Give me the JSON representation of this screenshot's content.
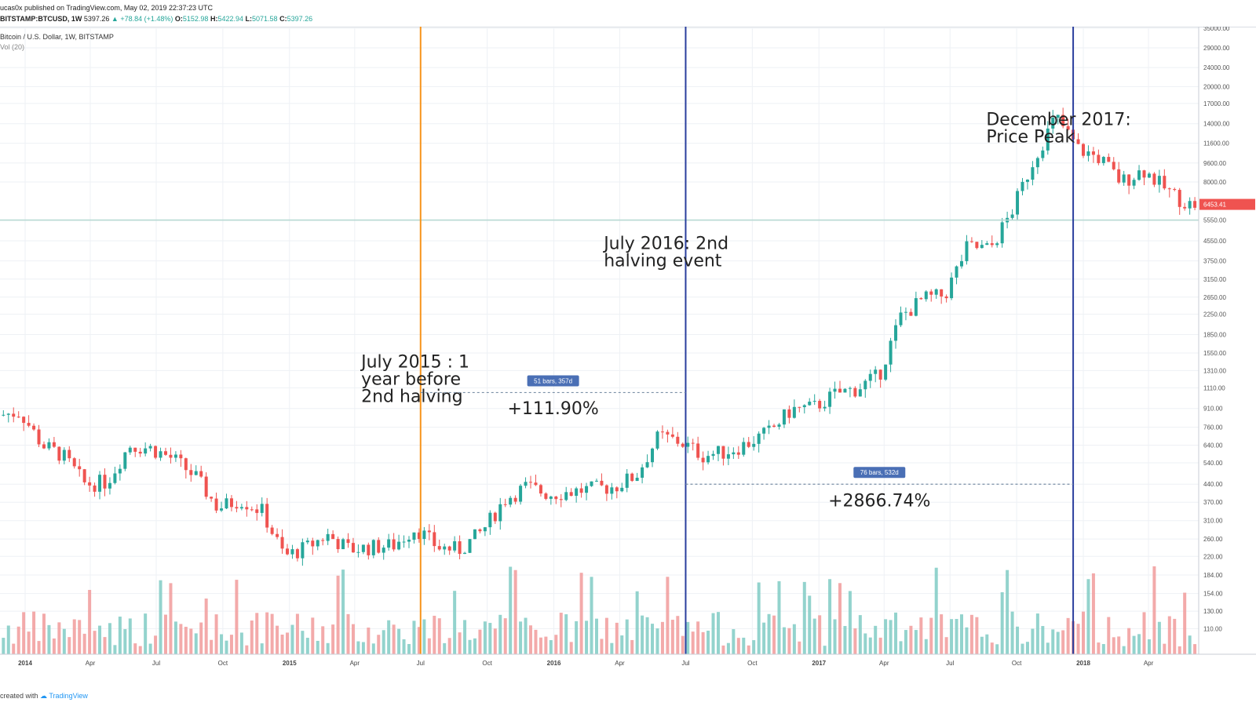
{
  "header": {
    "publish_text": "ucas0x published on TradingView.com, May 02, 2019 22:37:23 UTC",
    "symbol": "BITSTAMP:BTCUSD, 1W",
    "last": "5397.26",
    "change": "▲ +78.84 (+1.48%)",
    "o_label": "O:",
    "o": "5152.98",
    "h_label": "H:",
    "h": "5422.94",
    "l_label": "L:",
    "l": "5071.58",
    "c_label": "C:",
    "c": "5397.26"
  },
  "legend": {
    "title": "Bitcoin / U.S. Dollar, 1W, BITSTAMP",
    "vol": "Vol (20)"
  },
  "footer": {
    "created_with": "created with",
    "brand": "TradingView"
  },
  "colors": {
    "up": "#26a69a",
    "down": "#ef5350",
    "vol_up": "#80cbc4",
    "vol_down": "#f19b9b",
    "orange_line": "#f7931a",
    "blue_line": "#2a3f9e",
    "measure": "#7a8fa6",
    "measure_label": "#4a6fb5",
    "price_tag": "#ef5350"
  },
  "chart_data": {
    "type": "candlestick",
    "scale": "log",
    "ylim": [
      100,
      35000
    ],
    "y_ticks": [
      "35000.00",
      "29000.00",
      "24000.00",
      "20000.00",
      "17000.00",
      "14000.00",
      "11600.00",
      "9600.00",
      "8000.00",
      "6453.41",
      "5550.00",
      "4550.00",
      "3750.00",
      "3150.00",
      "2650.00",
      "2250.00",
      "1850.00",
      "1550.00",
      "1310.00",
      "1110.00",
      "910.00",
      "760.00",
      "640.00",
      "540.00",
      "440.00",
      "370.00",
      "310.00",
      "260.00",
      "220.00",
      "184.00",
      "154.00",
      "130.00",
      "110.00"
    ],
    "y_tick_values": [
      35000,
      29000,
      24000,
      20000,
      17000,
      14000,
      11600,
      9600,
      8000,
      6453.41,
      5550,
      4550,
      3750,
      3150,
      2650,
      2250,
      1850,
      1550,
      1310,
      1110,
      910,
      760,
      640,
      540,
      440,
      370,
      310,
      260,
      220,
      184,
      154,
      130,
      110
    ],
    "x_ticks": [
      {
        "label": "2014",
        "date": "2014-01-01",
        "bold": true
      },
      {
        "label": "Apr",
        "date": "2014-04-01",
        "bold": false
      },
      {
        "label": "Jul",
        "date": "2014-07-01",
        "bold": false
      },
      {
        "label": "Oct",
        "date": "2014-10-01",
        "bold": false
      },
      {
        "label": "2015",
        "date": "2015-01-01",
        "bold": true
      },
      {
        "label": "Apr",
        "date": "2015-04-01",
        "bold": false
      },
      {
        "label": "Jul",
        "date": "2015-07-01",
        "bold": false
      },
      {
        "label": "Oct",
        "date": "2015-10-01",
        "bold": false
      },
      {
        "label": "2016",
        "date": "2016-01-01",
        "bold": true
      },
      {
        "label": "Apr",
        "date": "2016-04-01",
        "bold": false
      },
      {
        "label": "Jul",
        "date": "2016-07-01",
        "bold": false
      },
      {
        "label": "Oct",
        "date": "2016-10-01",
        "bold": false
      },
      {
        "label": "2017",
        "date": "2017-01-01",
        "bold": true
      },
      {
        "label": "Apr",
        "date": "2017-04-01",
        "bold": false
      },
      {
        "label": "Jul",
        "date": "2017-07-01",
        "bold": false
      },
      {
        "label": "Oct",
        "date": "2017-10-01",
        "bold": false
      },
      {
        "label": "2018",
        "date": "2018-01-01",
        "bold": true
      },
      {
        "label": "Apr",
        "date": "2018-04-01",
        "bold": false
      }
    ],
    "price_path": [
      [
        "2013-11-01",
        900
      ],
      [
        "2013-12-01",
        850
      ],
      [
        "2014-01-01",
        880
      ],
      [
        "2014-02-01",
        640
      ],
      [
        "2014-03-01",
        580
      ],
      [
        "2014-04-01",
        440
      ],
      [
        "2014-05-01",
        450
      ],
      [
        "2014-06-01",
        640
      ],
      [
        "2014-07-01",
        620
      ],
      [
        "2014-08-01",
        560
      ],
      [
        "2014-09-01",
        470
      ],
      [
        "2014-10-01",
        350
      ],
      [
        "2014-11-01",
        380
      ],
      [
        "2014-12-01",
        340
      ],
      [
        "2015-01-01",
        220
      ],
      [
        "2015-02-01",
        240
      ],
      [
        "2015-03-01",
        270
      ],
      [
        "2015-04-01",
        235
      ],
      [
        "2015-05-01",
        240
      ],
      [
        "2015-06-01",
        245
      ],
      [
        "2015-07-01",
        290
      ],
      [
        "2015-08-01",
        240
      ],
      [
        "2015-09-01",
        235
      ],
      [
        "2015-10-01",
        280
      ],
      [
        "2015-11-01",
        380
      ],
      [
        "2015-12-01",
        430
      ],
      [
        "2016-01-01",
        400
      ],
      [
        "2016-02-01",
        410
      ],
      [
        "2016-03-01",
        420
      ],
      [
        "2016-04-01",
        430
      ],
      [
        "2016-05-01",
        480
      ],
      [
        "2016-06-01",
        700
      ],
      [
        "2016-07-01",
        660
      ],
      [
        "2016-08-01",
        580
      ],
      [
        "2016-09-01",
        600
      ],
      [
        "2016-10-01",
        650
      ],
      [
        "2016-11-01",
        730
      ],
      [
        "2016-12-01",
        900
      ],
      [
        "2017-01-01",
        920
      ],
      [
        "2017-02-01",
        1050
      ],
      [
        "2017-03-01",
        1100
      ],
      [
        "2017-04-01",
        1250
      ],
      [
        "2017-05-01",
        2200
      ],
      [
        "2017-06-01",
        2600
      ],
      [
        "2017-07-01",
        2700
      ],
      [
        "2017-08-01",
        4300
      ],
      [
        "2017-09-01",
        4200
      ],
      [
        "2017-10-01",
        6000
      ],
      [
        "2017-11-01",
        10000
      ],
      [
        "2017-12-01",
        15000
      ],
      [
        "2018-01-01",
        11000
      ],
      [
        "2018-02-01",
        10000
      ],
      [
        "2018-03-01",
        8000
      ],
      [
        "2018-04-01",
        9000
      ],
      [
        "2018-05-01",
        7500
      ],
      [
        "2018-06-01",
        6453.41
      ]
    ],
    "last_price": "6453.41",
    "last_price_value": 6453.41,
    "horizontal_line_value": 5550,
    "vertical_lines": [
      {
        "name": "orange",
        "date": "2015-07-01",
        "color": "orange_line"
      },
      {
        "name": "blue-1",
        "date": "2016-07-01",
        "color": "blue_line"
      },
      {
        "name": "blue-2",
        "date": "2017-12-18",
        "color": "blue_line"
      }
    ],
    "annotations": [
      {
        "name": "annot-jul2015",
        "lines": [
          "July 2015 : 1",
          "year before",
          "2nd halving"
        ],
        "date": "2015-04-10",
        "value": 1350
      },
      {
        "name": "annot-jul2016",
        "lines": [
          "July 2016: 2nd",
          "halving event"
        ],
        "date": "2016-03-10",
        "value": 4200
      },
      {
        "name": "annot-dec2017",
        "lines": [
          "December 2017:",
          "Price Peak"
        ],
        "date": "2017-08-20",
        "value": 13800
      }
    ],
    "measures": [
      {
        "name": "measure-1",
        "from": "2015-07-01",
        "to": "2016-07-01",
        "value": 1060,
        "label": "51 bars, 357d",
        "pct": "+111.90%",
        "pct_value": 860
      },
      {
        "name": "measure-2",
        "from": "2016-07-01",
        "to": "2017-12-18",
        "value": 440,
        "label": "76 bars, 532d",
        "pct": "+2866.74%",
        "pct_value": 355
      }
    ]
  }
}
